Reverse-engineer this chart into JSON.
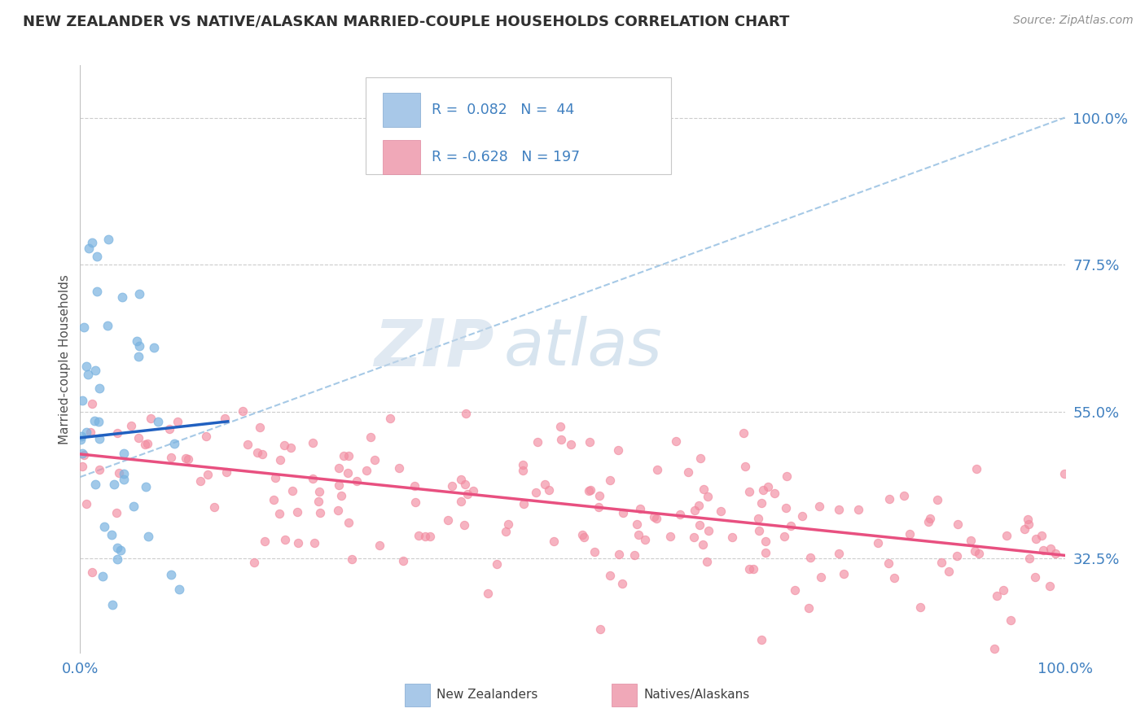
{
  "title": "NEW ZEALANDER VS NATIVE/ALASKAN MARRIED-COUPLE HOUSEHOLDS CORRELATION CHART",
  "source": "Source: ZipAtlas.com",
  "ylabel": "Married-couple Households",
  "y_ticks": [
    32.5,
    55.0,
    77.5,
    100.0
  ],
  "y_tick_labels": [
    "32.5%",
    "55.0%",
    "77.5%",
    "100.0%"
  ],
  "x_range": [
    0.0,
    100.0
  ],
  "y_range": [
    18.0,
    108.0
  ],
  "blue_R": 0.082,
  "blue_N": 44,
  "pink_R": -0.628,
  "pink_N": 197,
  "blue_scatter_color": "#7ab3e0",
  "pink_scatter_color": "#f28ba0",
  "blue_line_color": "#2060c0",
  "blue_dashed_color": "#90bce0",
  "pink_line_color": "#e85080",
  "legend_label_blue": "R =  0.082   N =  44",
  "legend_label_pink": "R = -0.628   N = 197",
  "legend_blue": "New Zealanders",
  "legend_pink": "Natives/Alaskans",
  "watermark": "ZIPAtlas",
  "title_color": "#303030",
  "source_color": "#909090",
  "axis_label_color": "#4080c0",
  "tick_color": "#4080c0",
  "blue_solid_x0": 0.0,
  "blue_solid_x1": 15.0,
  "blue_solid_y0": 51.0,
  "blue_solid_y1": 53.5,
  "blue_dashed_x0": 0.0,
  "blue_dashed_x1": 100.0,
  "blue_dashed_y0": 45.0,
  "blue_dashed_y1": 100.0,
  "pink_x0": 0.0,
  "pink_x1": 100.0,
  "pink_y0": 48.5,
  "pink_y1": 33.0
}
